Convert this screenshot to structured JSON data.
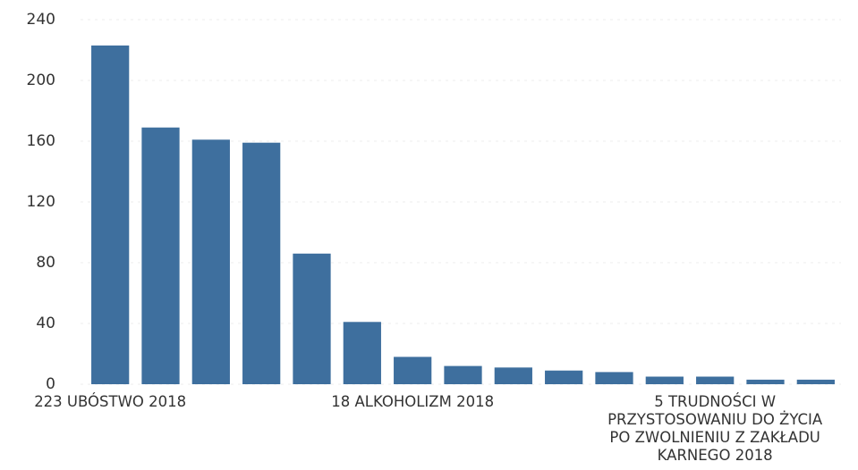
{
  "chart_data": {
    "type": "bar",
    "categories": [
      "223 UBÓSTWO 2018",
      null,
      null,
      null,
      null,
      null,
      "18 ALKOHOLIZM 2018",
      null,
      null,
      null,
      null,
      null,
      "5 TRUDNOŚCI W\nPRZYSTOSOWANIU DO ŻYCIA\nPO ZWOLNIENIU Z ZAKŁADU\nKARNEGO 2018",
      null,
      null
    ],
    "values": [
      223,
      169,
      161,
      159,
      86,
      41,
      18,
      12,
      11,
      9,
      8,
      5,
      5,
      3,
      3
    ],
    "color": "#3e6f9e",
    "ylim": [
      0,
      240
    ],
    "yticks": [
      0,
      40,
      80,
      120,
      160,
      200,
      240
    ],
    "grid": true
  }
}
